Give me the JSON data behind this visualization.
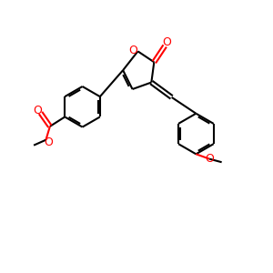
{
  "bg_color": "#ffffff",
  "bond_color": "#000000",
  "o_color": "#ff0000",
  "lw": 1.5,
  "dbo": 0.08,
  "fs": 9,
  "figsize": [
    3.0,
    3.0
  ],
  "dpi": 100,
  "xlim": [
    0,
    10
  ],
  "ylim": [
    0,
    10
  ]
}
